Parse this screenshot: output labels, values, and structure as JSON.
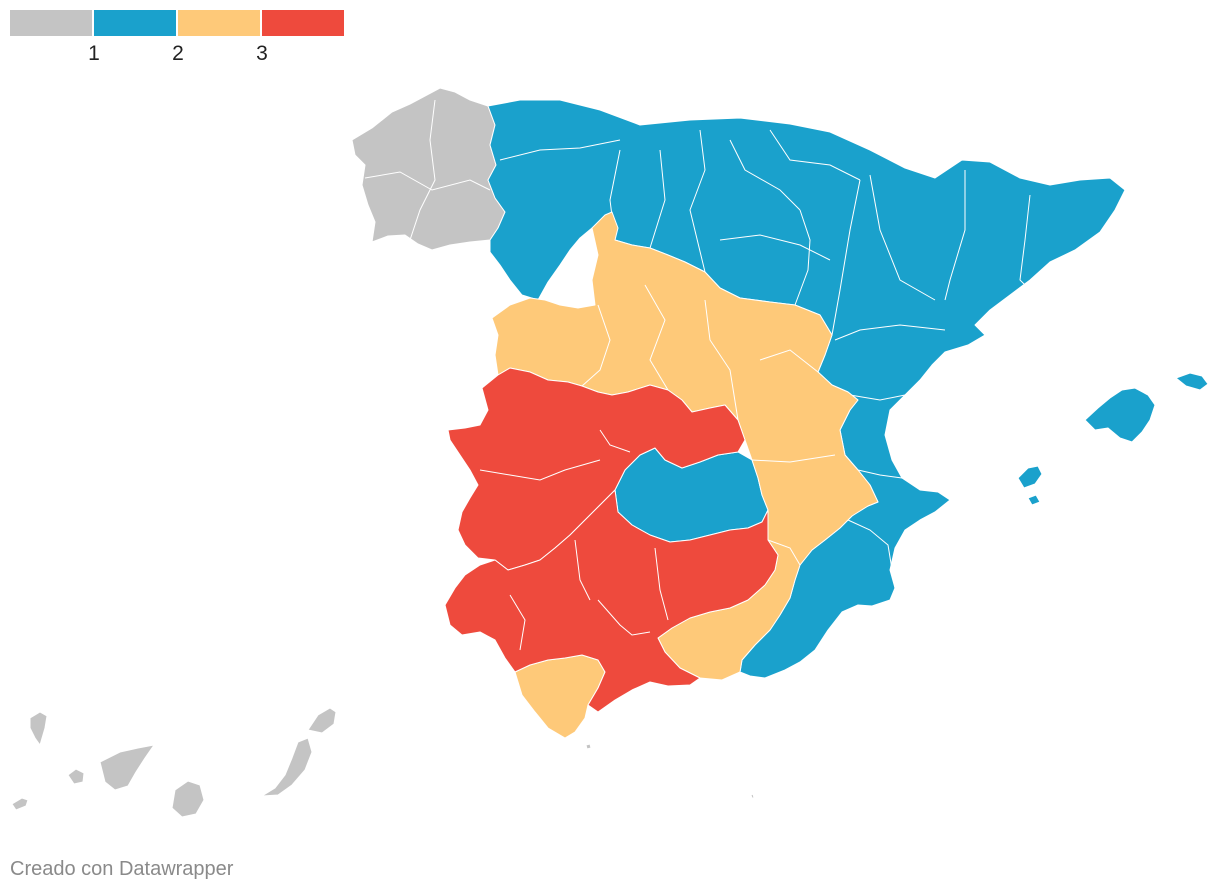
{
  "legend": {
    "colors": [
      "#c4c4c4",
      "#1aa1cc",
      "#fec979",
      "#ee4a3d"
    ],
    "labels": [
      "1",
      "2",
      "3"
    ]
  },
  "map": {
    "country": "Spain",
    "classes": {
      "1": "#c4c4c4",
      "2": "#1aa1cc",
      "3": "#fec979",
      "4": "#ee4a3d"
    }
  },
  "credit": "Creado con Datawrapper"
}
